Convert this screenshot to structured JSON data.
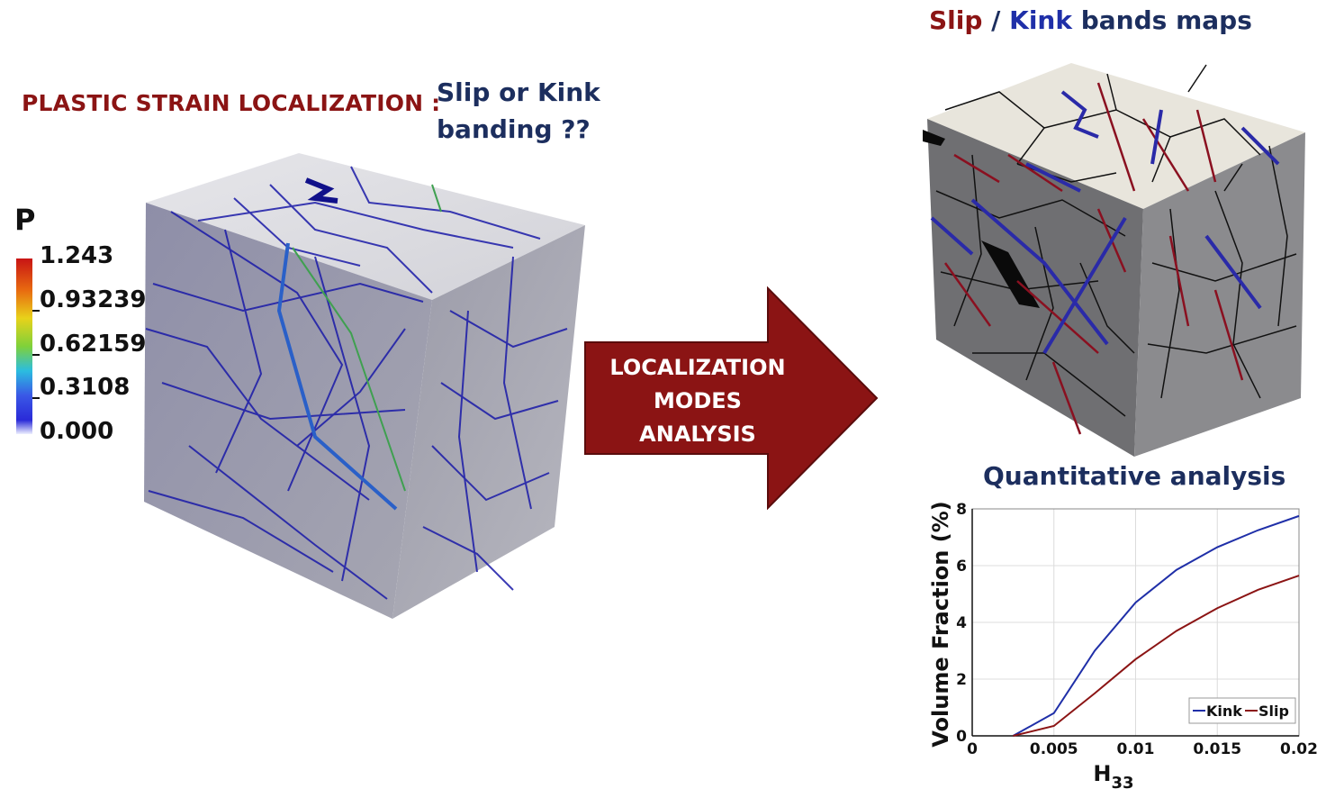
{
  "left": {
    "heading": "PLASTIC STRAIN LOCALIZATION :",
    "question_line1": "Slip or Kink",
    "question_line2": "banding ??",
    "colorbar": {
      "title": "P",
      "labels": [
        "1.243",
        "0.93239",
        "0.62159",
        "0.3108",
        "0.000"
      ]
    }
  },
  "arrow": {
    "line1": "LOCALIZATION",
    "line2": "MODES",
    "line3": "ANALYSIS",
    "color": "#8b1414"
  },
  "right": {
    "title_slip": "Slip",
    "title_sep": " / ",
    "title_kink": "Kink",
    "title_rest": " bands maps"
  },
  "colors": {
    "slip": "#8b1414",
    "kink": "#1f2fa8",
    "navy": "#1c2e5e"
  },
  "chart_data": {
    "type": "line",
    "title": "Quantitative analysis",
    "xlabel": "H",
    "xlabel_sub": "33",
    "ylabel": "Volume Fraction (%)",
    "xlim": [
      0,
      0.02
    ],
    "ylim": [
      0,
      8
    ],
    "xticks": [
      0,
      0.005,
      0.01,
      0.015,
      0.02
    ],
    "xtick_labels": [
      "0",
      "0.005",
      "0.01",
      "0.015",
      "0.02"
    ],
    "yticks": [
      0,
      2,
      4,
      6,
      8
    ],
    "ytick_labels": [
      "0",
      "2",
      "4",
      "6",
      "8"
    ],
    "grid": true,
    "legend_position": "bottom-right",
    "series": [
      {
        "name": "Kink",
        "color": "#1f2fa8",
        "x": [
          0.0025,
          0.005,
          0.0075,
          0.01,
          0.0125,
          0.015,
          0.0175,
          0.02
        ],
        "y": [
          0,
          0.8,
          3.0,
          4.7,
          5.85,
          6.65,
          7.25,
          7.75
        ]
      },
      {
        "name": "Slip",
        "color": "#8b1414",
        "x": [
          0.0025,
          0.005,
          0.0075,
          0.01,
          0.0125,
          0.015,
          0.0175,
          0.02
        ],
        "y": [
          0,
          0.35,
          1.5,
          2.7,
          3.7,
          4.5,
          5.15,
          5.65
        ]
      }
    ]
  }
}
